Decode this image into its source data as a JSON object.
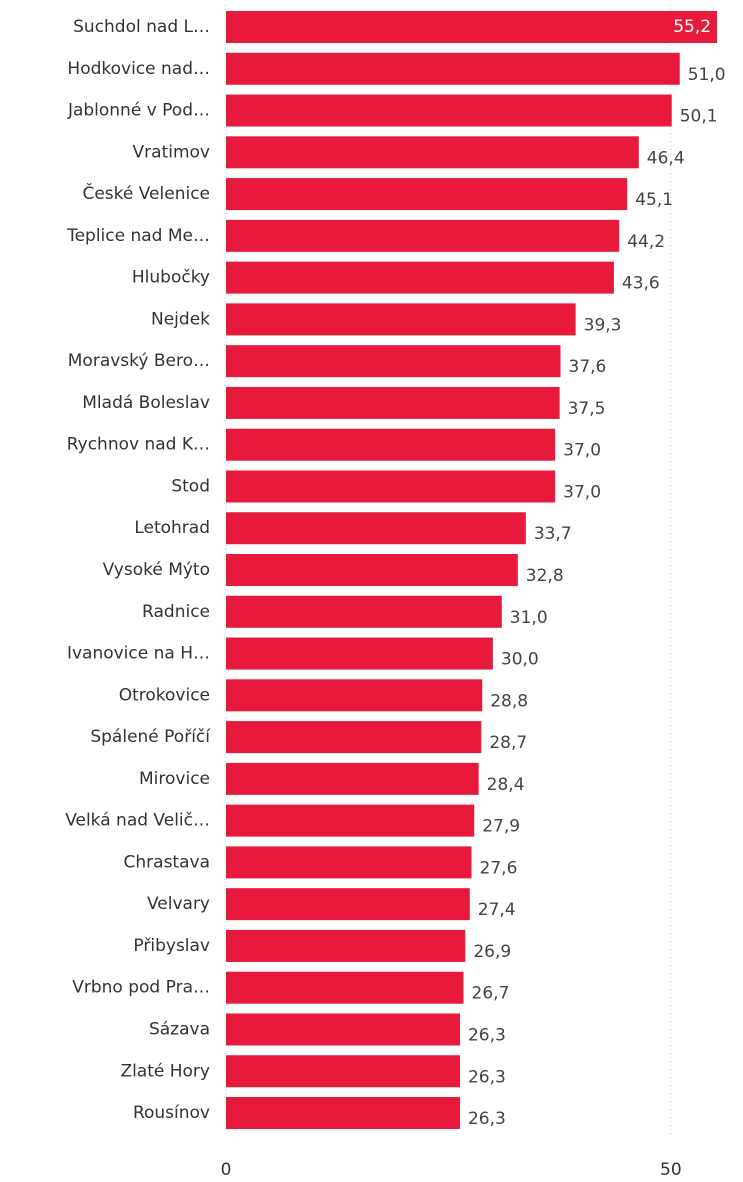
{
  "chart_data": {
    "type": "bar",
    "orientation": "horizontal",
    "categories": [
      "Suchdol nad L…",
      "Hodkovice nad…",
      "Jablonné v Pod…",
      "Vratimov",
      "České Velenice",
      "Teplice nad Me…",
      "Hlubočky",
      "Nejdek",
      "Moravský Bero…",
      "Mladá Boleslav",
      "Rychnov nad K…",
      "Stod",
      "Letohrad",
      "Vysoké Mýto",
      "Radnice",
      "Ivanovice na H…",
      "Otrokovice",
      "Spálené Poříčí",
      "Mirovice",
      "Velká nad Velič…",
      "Chrastava",
      "Velvary",
      "Přibyslav",
      "Vrbno pod Pra…",
      "Sázava",
      "Zlaté Hory",
      "Rousínov"
    ],
    "values": [
      55.2,
      51.0,
      50.1,
      46.4,
      45.1,
      44.2,
      43.6,
      39.3,
      37.6,
      37.5,
      37.0,
      37.0,
      33.7,
      32.8,
      31.0,
      30.0,
      28.8,
      28.7,
      28.4,
      27.9,
      27.6,
      27.4,
      26.9,
      26.7,
      26.3,
      26.3,
      26.3
    ],
    "value_labels": [
      "55,2",
      "51,0",
      "50,1",
      "46,4",
      "45,1",
      "44,2",
      "43,6",
      "39,3",
      "37,6",
      "37,5",
      "37,0",
      "37,0",
      "33,7",
      "32,8",
      "31,0",
      "30,0",
      "28,8",
      "28,7",
      "28,4",
      "27,9",
      "27,6",
      "27,4",
      "26,9",
      "26,7",
      "26,3",
      "26,3",
      "26,3"
    ],
    "color": "#e81a3b",
    "xlim": [
      0,
      58
    ],
    "xticks": [
      0,
      50
    ],
    "grid": true
  }
}
